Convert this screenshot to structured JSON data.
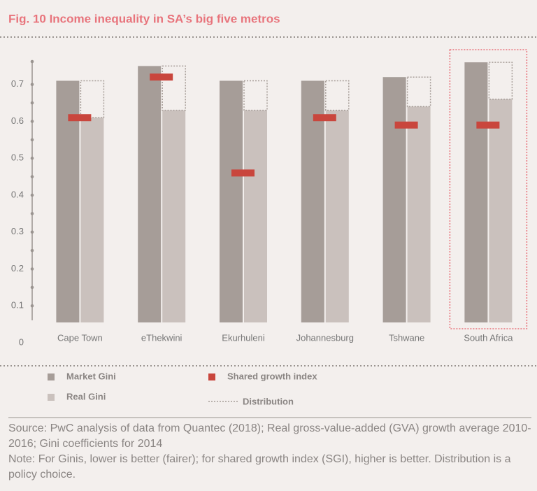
{
  "chart_data": {
    "type": "bar",
    "title": "Fig. 10 Income inequality in SA’s big five metros",
    "categories": [
      "Cape Town",
      "eThekwini",
      "Ekurhuleni",
      "Johannesburg",
      "Tshwane",
      "South Africa"
    ],
    "series": [
      {
        "name": "Market Gini",
        "color": "#a69d98",
        "values": [
          0.71,
          0.75,
          0.71,
          0.71,
          0.72,
          0.76
        ]
      },
      {
        "name": "Real Gini",
        "color": "#cac1bd",
        "values": [
          0.61,
          0.63,
          0.63,
          0.63,
          0.64,
          0.66
        ]
      },
      {
        "name": "Shared growth index",
        "color": "#c9463d",
        "values": [
          0.61,
          0.72,
          0.46,
          0.61,
          0.59,
          0.59
        ]
      }
    ],
    "distribution": {
      "name": "Distribution",
      "color": "#a69d98"
    },
    "highlight": "South Africa",
    "ylim": [
      0,
      0.8
    ],
    "yticks": [
      0,
      0.1,
      0.2,
      0.3,
      0.4,
      0.5,
      0.6,
      0.7
    ],
    "notes": [
      "Source: PwC analysis of data from Quantec (2018); Real gross-value-added (GVA) growth average 2010-2016; Gini coefficients for 2014",
      "Note: For Ginis, lower is better (fairer); for shared growth index (SGI), higher is better. Distribution is a policy choice."
    ]
  }
}
